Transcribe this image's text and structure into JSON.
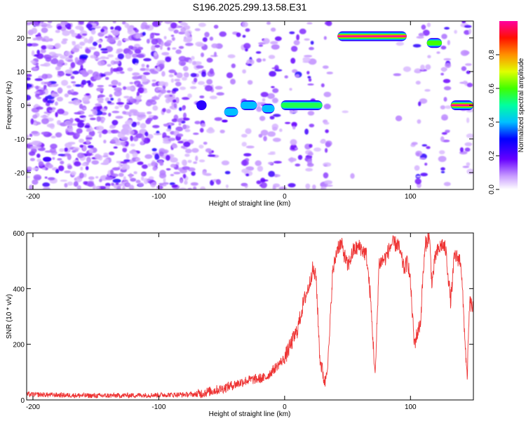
{
  "title": "S196.2025.299.13.58.E31",
  "chart_data": [
    {
      "type": "heatmap",
      "xlabel": "Height of straight line (km)",
      "ylabel": "Frequency (Hz)",
      "xlim": [
        -205,
        150
      ],
      "ylim": [
        -25,
        25
      ],
      "xticks": [
        -200,
        -100,
        0,
        100
      ],
      "yticks": [
        -20,
        -10,
        0,
        10,
        20
      ],
      "colorbar": {
        "label": "Normalized spectral amplitude",
        "range": [
          0,
          1
        ],
        "ticks": [
          0.0,
          0.2,
          0.4,
          0.6,
          0.8
        ]
      },
      "ridge_segments": [
        {
          "x0": -70,
          "x1": -62,
          "freq": 0,
          "amplitude": 0.35
        },
        {
          "x0": -48,
          "x1": -37,
          "freq": -2,
          "amplitude": 0.45
        },
        {
          "x0": -35,
          "x1": -22,
          "freq": 0,
          "amplitude": 0.5
        },
        {
          "x0": -18,
          "x1": -8,
          "freq": -1,
          "amplitude": 0.45
        },
        {
          "x0": -3,
          "x1": 30,
          "freq": 0,
          "amplitude": 0.55
        },
        {
          "x0": 42,
          "x1": 97,
          "freq": 20.5,
          "amplitude": 1.0
        },
        {
          "x0": 113,
          "x1": 125,
          "freq": 18.5,
          "amplitude": 0.6
        },
        {
          "x0": 132,
          "x1": 150,
          "freq": 0,
          "amplitude": 1.0
        }
      ]
    },
    {
      "type": "line",
      "xlabel": "Height of straight line (km)",
      "ylabel": "SNR (10 * v/v)",
      "xlim": [
        -205,
        150
      ],
      "ylim": [
        0,
        600
      ],
      "xticks": [
        -200,
        -100,
        0,
        100
      ],
      "yticks": [
        0,
        200,
        400,
        600
      ],
      "color": "#ee3333",
      "series": [
        {
          "x": [
            -205,
            -150,
            -100,
            -70,
            -50,
            -30,
            -15,
            0,
            5,
            10,
            15,
            20,
            22,
            25,
            28,
            32,
            35,
            38,
            42,
            45,
            50,
            55,
            60,
            65,
            68,
            72,
            75,
            80,
            85,
            90,
            95,
            98,
            100,
            103,
            108,
            110,
            112,
            115,
            117,
            120,
            125,
            128,
            132,
            135,
            140,
            145,
            147,
            150
          ],
          "y": [
            20,
            15,
            18,
            20,
            40,
            70,
            80,
            150,
            200,
            250,
            350,
            420,
            470,
            440,
            150,
            60,
            170,
            450,
            550,
            560,
            480,
            540,
            550,
            520,
            380,
            80,
            490,
            510,
            560,
            560,
            470,
            500,
            420,
            200,
            280,
            450,
            560,
            590,
            420,
            520,
            560,
            540,
            350,
            520,
            500,
            70,
            350,
            330
          ]
        }
      ]
    }
  ]
}
